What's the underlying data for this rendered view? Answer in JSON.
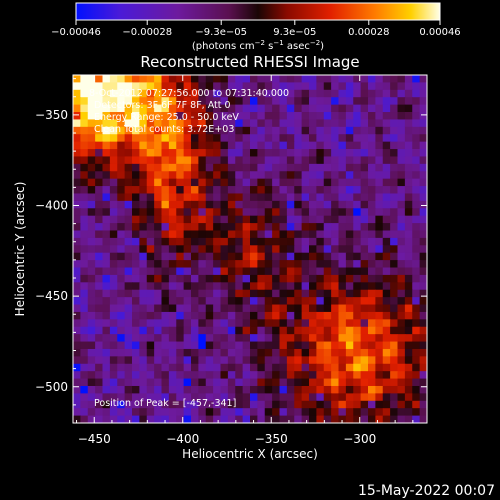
{
  "chart_data": {
    "type": "heatmap",
    "title": "Reconstructed RHESSI Image",
    "xlabel": "Heliocentric X (arcsec)",
    "ylabel": "Heliocentric Y (arcsec)",
    "xlim": [
      -462,
      -262
    ],
    "ylim": [
      -520,
      -328
    ],
    "x_ticks": [
      -450,
      -400,
      -350,
      -300
    ],
    "x_tick_labels": [
      "−450",
      "−400",
      "−350",
      "−300"
    ],
    "y_ticks": [
      -350,
      -400,
      -450,
      -500
    ],
    "y_tick_labels": [
      "−350",
      "−400",
      "−450",
      "−500"
    ],
    "colorbar": {
      "min": -0.00046,
      "max": 0.00046,
      "ticks": [
        -0.00046,
        -0.00028,
        -9.3e-05,
        9.3e-05,
        0.00028,
        0.00046
      ],
      "tick_labels": [
        "−0.00046",
        "−0.00028",
        "−9.3e−05",
        "9.3e−05",
        "0.00028",
        "0.00046"
      ],
      "colormap": "rainbow-blue-purple-red-yellow-white"
    },
    "annotations": {
      "time_range": "8-Oct-2012 07:27:56.000 to 07:31:40.000",
      "detectors": "Detectors: 3F 6F 7F 8F, Att 0",
      "energy_range": "Energy Range: 25.0 - 50.0 keV",
      "clean": "Clean    Total counts: 3.72E+03",
      "peak_position": "Position of Peak = [-457,-341]"
    },
    "peak": {
      "x": -457,
      "y": -341
    },
    "grid": false
  },
  "colorbar_units": {
    "main": "(photons cm",
    "exp1": "−2",
    "mid1": " s",
    "exp2": "−1",
    "mid2": " asec",
    "exp3": "−2",
    "end": ")"
  },
  "footer": {
    "timestamp": "15-May-2022 00:07"
  },
  "colors": {
    "background": "#000000",
    "foreground": "#ffffff"
  }
}
